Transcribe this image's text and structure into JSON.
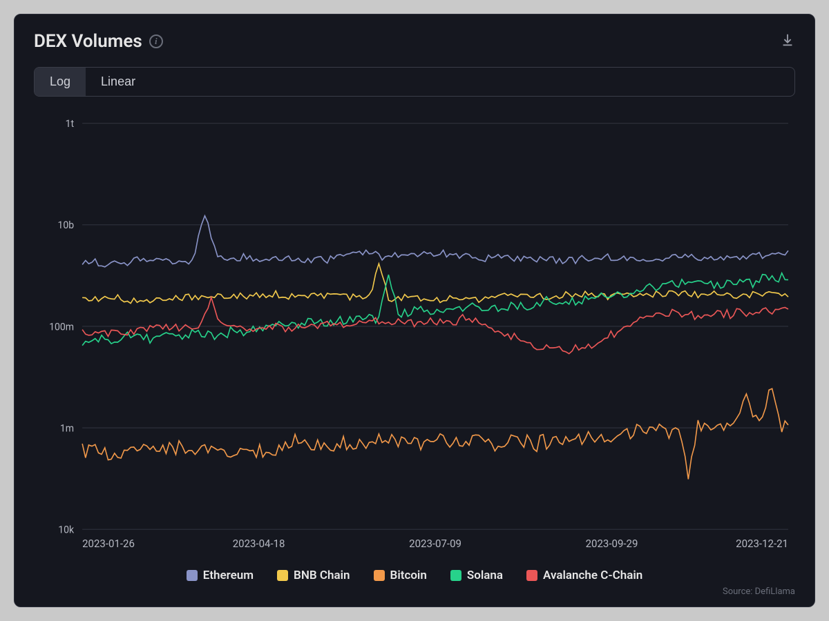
{
  "card": {
    "title": "DEX Volumes",
    "source_label": "Source: DefiLlama",
    "background_color": "#15171f",
    "border_color": "#2a2d38"
  },
  "toggle": {
    "log_label": "Log",
    "linear_label": "Linear",
    "active": "log"
  },
  "chart": {
    "type": "line",
    "scale": "log",
    "ylim_log": [
      10000,
      1000000000000
    ],
    "y_ticks": [
      {
        "value": 1000000000000,
        "label": "1t"
      },
      {
        "value": 10000000000,
        "label": "10b"
      },
      {
        "value": 100000000,
        "label": "100m"
      },
      {
        "value": 1000000,
        "label": "1m"
      },
      {
        "value": 10000,
        "label": "10k"
      }
    ],
    "x_ticks": [
      "2023-01-26",
      "2023-04-18",
      "2023-07-09",
      "2023-09-29",
      "2023-12-21"
    ],
    "grid_color": "#2f323d",
    "text_color": "#b5b8c2",
    "line_width": 1.6,
    "n_points": 220,
    "series": [
      {
        "name": "Ethereum",
        "color": "#8a94c8",
        "base_log": 9.25,
        "trend_end_log": 9.4,
        "noise": 0.14,
        "spikes": [
          {
            "i": 38,
            "amp": 0.9,
            "w": 3
          }
        ]
      },
      {
        "name": "BNB Chain",
        "color": "#f2c94c",
        "base_log": 8.55,
        "trend_end_log": 8.62,
        "noise": 0.12,
        "spikes": [
          {
            "i": 92,
            "amp": 0.7,
            "w": 2
          }
        ]
      },
      {
        "name": "Bitcoin",
        "color": "#f2994a",
        "base_log": 5.55,
        "trend_end_log": 5.95,
        "noise": 0.28,
        "spikes": [
          {
            "i": 188,
            "amp": -0.9,
            "w": 2
          },
          {
            "i": 206,
            "amp": 0.7,
            "w": 3
          },
          {
            "i": 214,
            "amp": 0.8,
            "w": 2
          }
        ]
      },
      {
        "name": "Solana",
        "color": "#27d28b",
        "base_log": 7.65,
        "trend_end_log": 8.95,
        "noise": 0.18,
        "spikes": [
          {
            "i": 95,
            "amp": 0.75,
            "w": 2
          }
        ]
      },
      {
        "name": "Avalanche C-Chain",
        "color": "#eb5757",
        "base_log": 7.9,
        "trend_end_log": 8.3,
        "noise": 0.17,
        "spikes": [
          {
            "i": 40,
            "amp": 0.55,
            "w": 3
          }
        ],
        "dip": {
          "start": 120,
          "end": 175,
          "amp": -0.55
        }
      }
    ]
  }
}
